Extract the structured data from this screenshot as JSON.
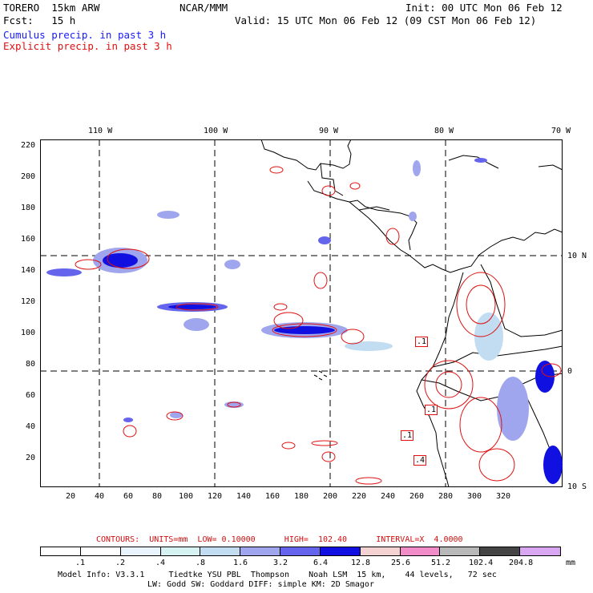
{
  "header": {
    "model_name": "TORERO  15km ARW",
    "org": "NCAR/MMM",
    "init": "Init: 00 UTC Mon 06 Feb 12",
    "fcst": "Fcst:   15 h",
    "valid": "Valid: 15 UTC Mon 06 Feb 12 (09 CST Mon 06 Feb 12)",
    "field1": "Cumulus precip. in past 3 h",
    "field2": "Explicit precip. in past 3 h",
    "field1_color": "#1a1aff",
    "field2_color": "#e01010"
  },
  "map": {
    "lon_labels": [
      "110 W",
      "100 W",
      "90 W",
      "80 W",
      "70 W"
    ],
    "lat_labels": [
      "10 N",
      "0",
      "10 S"
    ],
    "y_ticks": [
      "220",
      "200",
      "180",
      "160",
      "140",
      "120",
      "100",
      "80",
      "60",
      "40",
      "20"
    ],
    "x_ticks": [
      "20",
      "40",
      "60",
      "80",
      "100",
      "120",
      "140",
      "160",
      "180",
      "200",
      "220",
      "240",
      "260",
      "280",
      "300",
      "320"
    ],
    "contour_labels": [
      ".1",
      ".1",
      ".1",
      ".4"
    ]
  },
  "contours_info": {
    "label": "CONTOURS:  UNITS=mm  LOW= 0.10000      HIGH=  102.40      INTERVAL=X  4.0000",
    "color": "#d01010"
  },
  "colorbar": {
    "labels": [
      ".1",
      ".2",
      ".4",
      ".8",
      "1.6",
      "3.2",
      "6.4",
      "12.8",
      "25.6",
      "51.2",
      "102.4",
      "204.8"
    ],
    "unit": "mm",
    "colors": [
      "#ffffff",
      "#ffffff",
      "#eaf4ff",
      "#d6f2f2",
      "#c2dcf2",
      "#9fa6ee",
      "#6464ec",
      "#1010e0",
      "#f4d2d2",
      "#f08cc8",
      "#b8b8b8",
      "#444444",
      "#d9a6f2"
    ]
  },
  "footer": {
    "line1": "Model Info: V3.3.1     Tiedtke YSU PBL  Thompson    Noah LSM  15 km,    44 levels,   72 sec",
    "line2": "LW: Godd SW: Goddard DIFF: simple KM: 2D Smagor"
  }
}
